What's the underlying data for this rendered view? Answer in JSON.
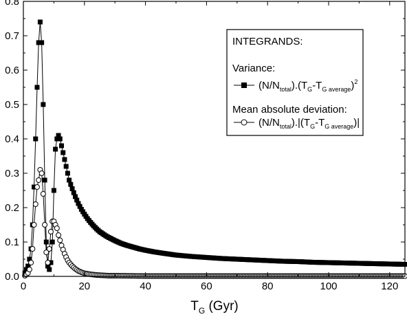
{
  "chart_data": {
    "type": "line",
    "title": "",
    "xlabel": {
      "main": "T",
      "sub": "G",
      "suffix": " (Gyr)"
    },
    "ylabel": "",
    "xlim": [
      0,
      125
    ],
    "ylim": [
      0,
      0.8
    ],
    "x_ticks": [
      0,
      20,
      40,
      60,
      80,
      100,
      120
    ],
    "x_tick_labels": [
      "0",
      "20",
      "40",
      "60",
      "80",
      "100",
      "120"
    ],
    "y_ticks": [
      0.0,
      0.1,
      0.2,
      0.3,
      0.4,
      0.5,
      0.6,
      0.7,
      0.8
    ],
    "y_tick_labels": [
      "0.0",
      "0.1",
      "0.2",
      "0.3",
      "0.4",
      "0.5",
      "0.6",
      "0.7",
      "0.8"
    ],
    "grid": false,
    "legend_position": "top-right",
    "legend": {
      "heading": "INTEGRANDS:",
      "group1_title": "Variance:",
      "group2_title": "Mean absolute deviation:",
      "entry1": {
        "p1": "(N/N",
        "p1_sub": "total",
        "p2": ").(T",
        "p2_sub": "G",
        "p3": "-T",
        "p3_sub": "G average",
        "p4": ")",
        "sup": "2"
      },
      "entry2": {
        "p1": "(N/N",
        "p1_sub": "total",
        "p2": ").|(T",
        "p2_sub": "G",
        "p3": "-T",
        "p3_sub": "G average",
        "p4": ")|"
      }
    },
    "series": [
      {
        "name": "Variance",
        "marker": "filled-square",
        "color": "#000000",
        "points": [
          [
            0.5,
            0.01
          ],
          [
            1.0,
            0.02
          ],
          [
            1.5,
            0.03
          ],
          [
            2.0,
            0.05
          ],
          [
            2.5,
            0.08
          ],
          [
            3.0,
            0.15
          ],
          [
            3.5,
            0.26
          ],
          [
            4.0,
            0.4
          ],
          [
            4.5,
            0.55
          ],
          [
            5.0,
            0.68
          ],
          [
            5.5,
            0.74
          ],
          [
            6.0,
            0.68
          ],
          [
            6.5,
            0.5
          ],
          [
            7.0,
            0.28
          ],
          [
            7.5,
            0.1
          ],
          [
            8.0,
            0.03
          ],
          [
            8.5,
            0.02
          ],
          [
            9.0,
            0.04
          ],
          [
            9.5,
            0.1
          ],
          [
            10.0,
            0.25
          ],
          [
            10.5,
            0.37
          ],
          [
            11.0,
            0.4
          ],
          [
            11.5,
            0.41
          ],
          [
            12.0,
            0.4
          ],
          [
            12.5,
            0.38
          ],
          [
            13.0,
            0.36
          ],
          [
            13.5,
            0.34
          ],
          [
            14.0,
            0.32
          ],
          [
            14.5,
            0.3
          ],
          [
            15.0,
            0.28
          ],
          [
            16.0,
            0.255
          ],
          [
            17.0,
            0.232
          ],
          [
            18.0,
            0.212
          ],
          [
            19.0,
            0.195
          ],
          [
            20.0,
            0.181
          ],
          [
            21.0,
            0.168
          ],
          [
            22.0,
            0.157
          ],
          [
            23.0,
            0.147
          ],
          [
            24.0,
            0.138
          ],
          [
            25.0,
            0.13
          ],
          [
            26.0,
            0.124
          ],
          [
            27.0,
            0.118
          ],
          [
            28.0,
            0.113
          ],
          [
            30.0,
            0.104
          ],
          [
            32.0,
            0.096
          ],
          [
            34.0,
            0.09
          ],
          [
            36.0,
            0.085
          ],
          [
            38.0,
            0.08
          ],
          [
            40.0,
            0.076
          ],
          [
            43.0,
            0.071
          ],
          [
            46.0,
            0.067
          ],
          [
            50.0,
            0.062
          ],
          [
            55.0,
            0.058
          ],
          [
            60.0,
            0.055
          ],
          [
            65.0,
            0.052
          ],
          [
            70.0,
            0.05
          ],
          [
            75.0,
            0.048
          ],
          [
            80.0,
            0.046
          ],
          [
            85.0,
            0.044
          ],
          [
            90.0,
            0.043
          ],
          [
            95.0,
            0.041
          ],
          [
            100.0,
            0.04
          ],
          [
            105.0,
            0.039
          ],
          [
            110.0,
            0.038
          ],
          [
            115.0,
            0.037
          ],
          [
            120.0,
            0.036
          ],
          [
            125.0,
            0.035
          ]
        ]
      },
      {
        "name": "Mean absolute deviation",
        "marker": "open-circle",
        "color": "#000000",
        "points": [
          [
            0.5,
            0.002
          ],
          [
            1.0,
            0.005
          ],
          [
            1.5,
            0.01
          ],
          [
            2.0,
            0.02
          ],
          [
            2.5,
            0.04
          ],
          [
            3.0,
            0.08
          ],
          [
            3.5,
            0.15
          ],
          [
            4.0,
            0.21
          ],
          [
            4.5,
            0.26
          ],
          [
            5.0,
            0.28
          ],
          [
            5.5,
            0.31
          ],
          [
            6.0,
            0.3
          ],
          [
            6.5,
            0.24
          ],
          [
            7.0,
            0.15
          ],
          [
            7.5,
            0.07
          ],
          [
            8.0,
            0.04
          ],
          [
            8.5,
            0.08
          ],
          [
            9.0,
            0.13
          ],
          [
            9.5,
            0.16
          ],
          [
            10.0,
            0.16
          ],
          [
            10.5,
            0.15
          ],
          [
            11.0,
            0.14
          ],
          [
            11.5,
            0.12
          ],
          [
            12.0,
            0.105
          ],
          [
            12.5,
            0.09
          ],
          [
            13.0,
            0.078
          ],
          [
            13.5,
            0.066
          ],
          [
            14.0,
            0.056
          ],
          [
            14.5,
            0.047
          ],
          [
            15.0,
            0.04
          ],
          [
            16.0,
            0.03
          ],
          [
            17.0,
            0.022
          ],
          [
            18.0,
            0.016
          ],
          [
            19.0,
            0.012
          ],
          [
            20.0,
            0.009
          ],
          [
            22.0,
            0.006
          ],
          [
            24.0,
            0.004
          ],
          [
            26.0,
            0.003
          ],
          [
            28.0,
            0.002
          ],
          [
            30.0,
            0.002
          ],
          [
            35.0,
            0.0015
          ],
          [
            40.0,
            0.001
          ],
          [
            50.0,
            0.001
          ],
          [
            60.0,
            0.001
          ],
          [
            70.0,
            0.001
          ],
          [
            80.0,
            0.001
          ],
          [
            90.0,
            0.001
          ],
          [
            100.0,
            0.001
          ],
          [
            110.0,
            0.001
          ],
          [
            120.0,
            0.001
          ],
          [
            125.0,
            0.001
          ]
        ]
      }
    ]
  }
}
